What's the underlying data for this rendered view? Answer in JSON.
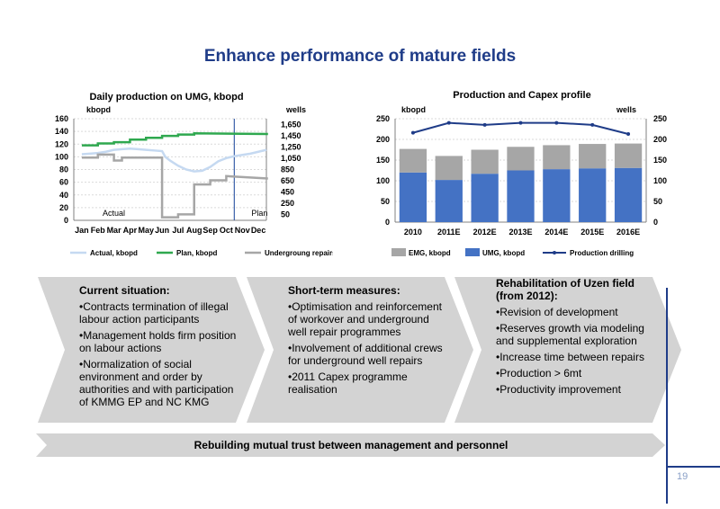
{
  "slide": {
    "title": "Enhance performance of mature fields",
    "page_number": "19",
    "banner": "Rebuilding mutual trust between management and personnel"
  },
  "chart_data": [
    {
      "type": "line",
      "title": "Daily production on UMG, kbopd",
      "left_unit": "kbopd",
      "right_unit": "wells",
      "categories": [
        "Jan",
        "Feb",
        "Mar",
        "Apr",
        "May",
        "Jun",
        "Jul",
        "Aug",
        "Sep",
        "Oct",
        "Nov",
        "Dec"
      ],
      "ylim": [
        0,
        160
      ],
      "y_ticks": [
        "0",
        "20",
        "40",
        "60",
        "80",
        "100",
        "120",
        "140",
        "160"
      ],
      "y2lim": [
        50,
        1750
      ],
      "y2_ticks": [
        "50",
        "250",
        "450",
        "650",
        "850",
        "1,050",
        "1,250",
        "1,450",
        "1,650"
      ],
      "region_labels": {
        "actual": "Actual",
        "plan": "Plan"
      },
      "series": [
        {
          "name": "Actual, kbopd",
          "color": "#c5d9f1",
          "axis": "left",
          "x": [
            0,
            0.5,
            1,
            1.5,
            2,
            2.5,
            3,
            3.5,
            4,
            4.5,
            5,
            5.2,
            5.5,
            6,
            6.5,
            7,
            7.5,
            8,
            8.5,
            9,
            9.5,
            10,
            10.5,
            11,
            11.5
          ],
          "values": [
            104,
            105,
            106,
            108,
            111,
            112,
            113,
            112,
            111,
            110,
            109,
            100,
            94,
            86,
            80,
            77,
            78,
            84,
            93,
            98,
            101,
            103,
            105,
            108,
            111
          ]
        },
        {
          "name": "Plan, kbopd",
          "color": "#2fa84f",
          "axis": "left",
          "x": [
            0,
            1,
            1,
            2,
            2,
            3,
            3,
            4,
            4,
            5,
            5,
            6,
            6,
            7,
            7,
            11.6
          ],
          "values": [
            118,
            118,
            121,
            121,
            123,
            123,
            127,
            127,
            130,
            130,
            133,
            133,
            135,
            135,
            137,
            136
          ]
        },
        {
          "name": "Undergroung repairs",
          "color": "#a6a6a6",
          "axis": "right",
          "x": [
            0,
            1,
            1,
            2,
            2,
            2.5,
            2.5,
            3.5,
            3.5,
            5,
            5,
            6,
            6,
            7,
            7,
            8,
            8,
            9,
            9,
            11.6
          ],
          "values": [
            1100,
            1100,
            1150,
            1150,
            1050,
            1050,
            1100,
            1100,
            1100,
            1100,
            100,
            100,
            150,
            150,
            650,
            650,
            720,
            720,
            790,
            750
          ]
        }
      ]
    },
    {
      "type": "bar",
      "title": "Production and Capex profile",
      "left_unit": "kbopd",
      "right_unit": "wells",
      "categories": [
        "2010",
        "2011E",
        "2012E",
        "2013E",
        "2014E",
        "2015E",
        "2016E"
      ],
      "ylim": [
        0,
        250
      ],
      "y_ticks": [
        "0",
        "50",
        "100",
        "150",
        "200",
        "250"
      ],
      "y2lim": [
        0,
        250
      ],
      "y2_ticks": [
        "0",
        "50",
        "100",
        "150",
        "200",
        "250"
      ],
      "stacked": true,
      "series": [
        {
          "name": "UMG, kbopd",
          "color": "#4472c4",
          "values": [
            120,
            102,
            117,
            125,
            128,
            130,
            131
          ]
        },
        {
          "name": "EMG, kbopd",
          "color": "#a6a6a6",
          "values": [
            57,
            58,
            58,
            57,
            58,
            59,
            59
          ]
        },
        {
          "name": "Production drilling",
          "color": "#1f3c88",
          "type": "line",
          "axis": "right",
          "values": [
            216,
            240,
            235,
            240,
            240,
            235,
            213
          ]
        }
      ]
    }
  ],
  "panels": [
    {
      "heading": "Current situation:",
      "items": [
        "•Contracts termination of illegal labour action participants",
        "•Management holds firm position on labour actions",
        "•Normalization of social environment and order by authorities and with participation of KMMG EP and NC KMG"
      ]
    },
    {
      "heading": "Short-term measures:",
      "items": [
        "•Optimisation and reinforcement of workover and underground well repair programmes",
        "•Involvement of additional crews for underground well repairs",
        "•2011 Capex programme realisation"
      ]
    },
    {
      "heading": "Rehabilitation of Uzen field (from 2012):",
      "items": [
        "•Revision of development",
        "•Reserves growth via modeling and supplemental exploration",
        "•Increase time between repairs",
        "•Production > 6mt",
        "•Productivity improvement"
      ]
    }
  ]
}
